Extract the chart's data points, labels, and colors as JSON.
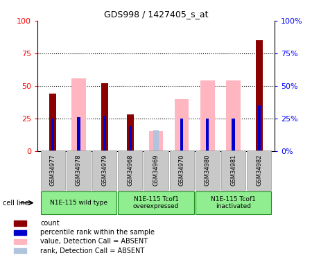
{
  "title": "GDS998 / 1427405_s_at",
  "samples": [
    "GSM34977",
    "GSM34978",
    "GSM34979",
    "GSM34968",
    "GSM34969",
    "GSM34970",
    "GSM34980",
    "GSM34981",
    "GSM34982"
  ],
  "count_values": [
    44,
    0,
    52,
    28,
    0,
    0,
    0,
    0,
    85
  ],
  "percentile_values": [
    25,
    26,
    27,
    19,
    0,
    25,
    25,
    25,
    35
  ],
  "pink_value_values": [
    0,
    56,
    0,
    0,
    15,
    40,
    54,
    54,
    0
  ],
  "light_blue_rank_values": [
    0,
    0,
    0,
    0,
    16,
    0,
    0,
    0,
    0
  ],
  "count_color": "#8B0000",
  "percentile_color": "#0000CD",
  "pink_color": "#FFB6C1",
  "light_blue_color": "#B0C4DE",
  "ylim": [
    0,
    100
  ],
  "yticks": [
    0,
    25,
    50,
    75,
    100
  ],
  "label_bg_color": "#C8C8C8",
  "bar_width": 0.55,
  "group_labels": [
    "N1E-115 wild type",
    "N1E-115 Tcof1\noverexpressed",
    "N1E-115 Tcof1\ninactivated"
  ],
  "group_ranges": [
    [
      0,
      2
    ],
    [
      3,
      5
    ],
    [
      6,
      8
    ]
  ],
  "group_color": "#90EE90",
  "group_edge_color": "#228B22"
}
